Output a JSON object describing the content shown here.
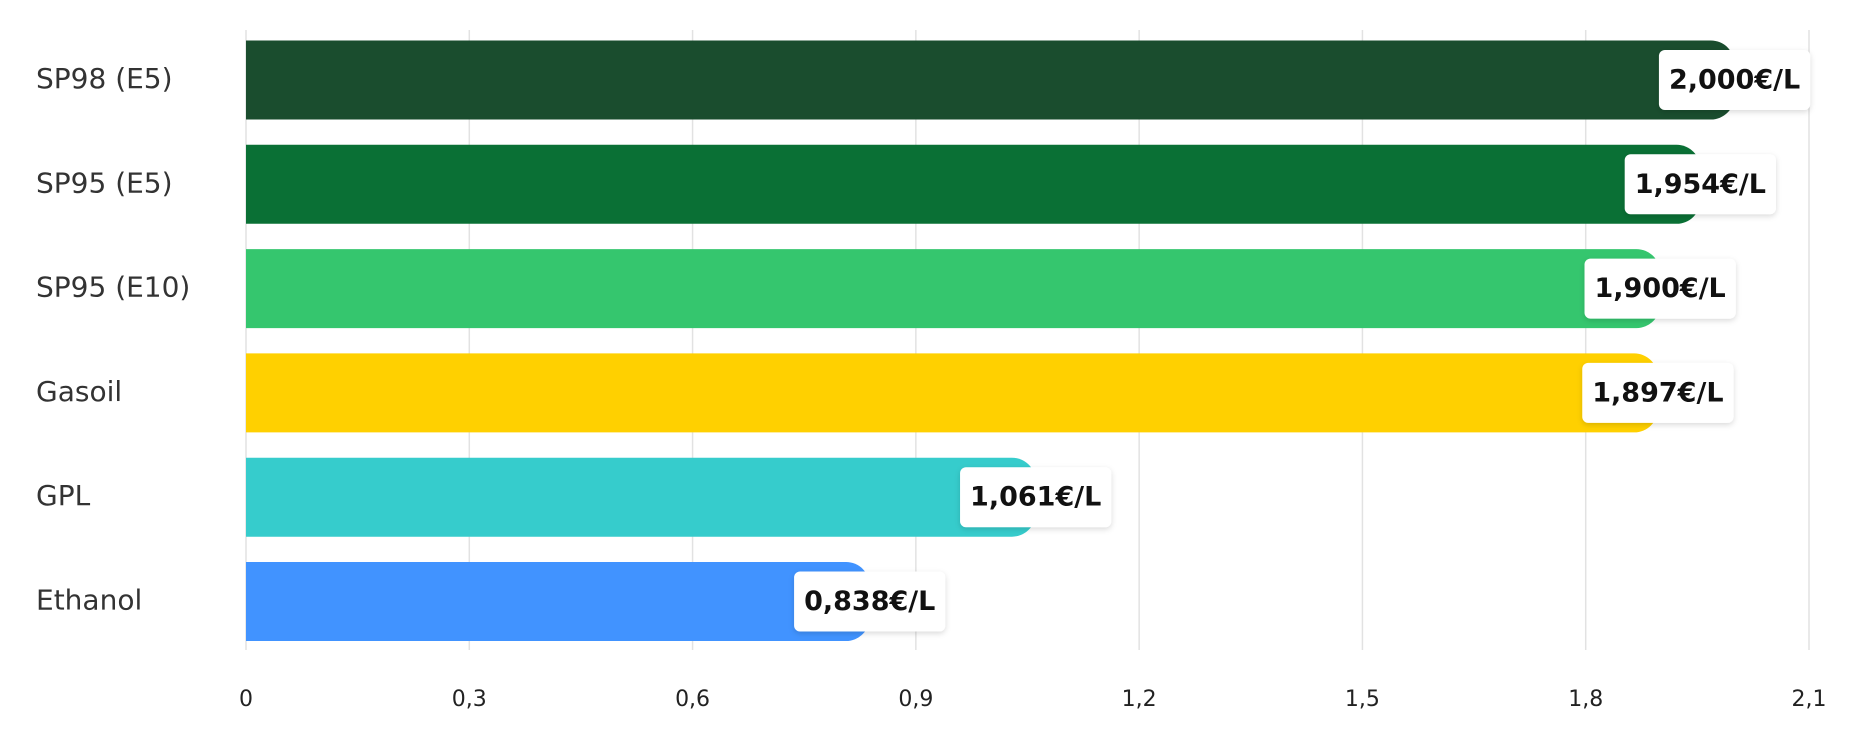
{
  "chart_data": {
    "type": "bar",
    "orientation": "horizontal",
    "categories": [
      "SP98 (E5)",
      "SP95 (E5)",
      "SP95 (E10)",
      "Gasoil",
      "GPL",
      "Ethanol"
    ],
    "values": [
      2.0,
      1.954,
      1.9,
      1.897,
      1.061,
      0.838
    ],
    "value_labels": [
      "2,000€/L",
      "1,954€/L",
      "1,900€/L",
      "1,897€/L",
      "1,061€/L",
      "0,838€/L"
    ],
    "colors": [
      "#1a4d2e",
      "#0a7035",
      "#35c66e",
      "#ffd000",
      "#36cccc",
      "#4193ff"
    ],
    "xlim": [
      0,
      2.1
    ],
    "xticks": [
      0,
      {
        "value": 0.3,
        "label": "0,3"
      },
      {
        "value": 0.6,
        "label": "0,6"
      },
      {
        "value": 0.9,
        "label": "0,9"
      },
      {
        "value": 1.2,
        "label": "1,2"
      },
      {
        "value": 1.5,
        "label": "1,5"
      },
      {
        "value": 1.8,
        "label": "1,8"
      },
      {
        "value": 2.1,
        "label": "2,1"
      }
    ],
    "grid": true
  }
}
